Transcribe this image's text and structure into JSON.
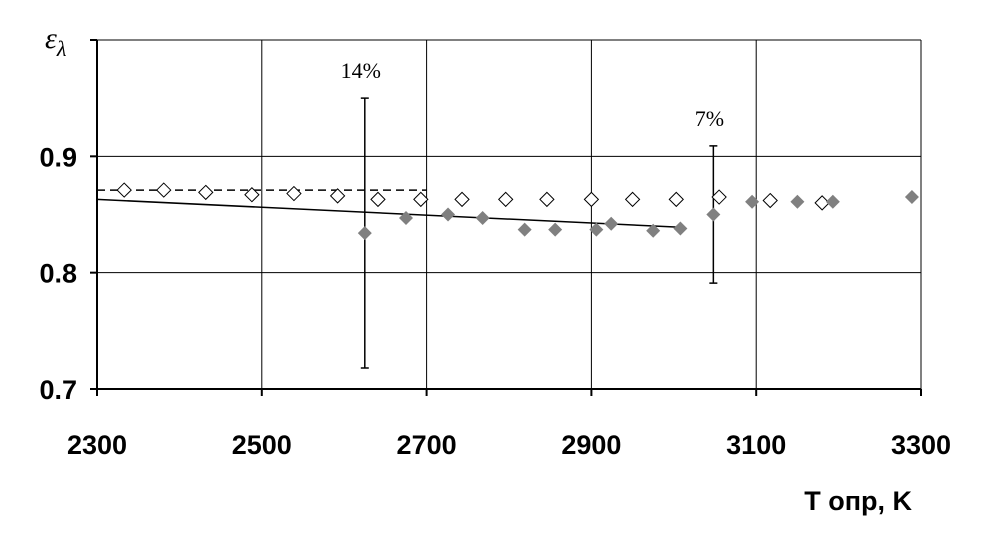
{
  "chart_data": {
    "type": "scatter",
    "y_label": {
      "symbol": "ε",
      "subscript": "λ"
    },
    "x_label": "T опр, K",
    "xlim": [
      2300,
      3300
    ],
    "xticks": [
      2300,
      2500,
      2700,
      2900,
      3100,
      3300
    ],
    "ylim": [
      0.7,
      1.0
    ],
    "yticks": [
      0.7,
      0.8,
      0.9
    ],
    "grid": true,
    "series": [
      {
        "marker": "open",
        "color": "#000000",
        "x": [
          2333,
          2381,
          2432,
          2488,
          2539,
          2592,
          2641,
          2693,
          2743,
          2796,
          2846,
          2900,
          2950,
          3003,
          3055,
          3117,
          3180
        ],
        "values": [
          0.871,
          0.871,
          0.869,
          0.867,
          0.868,
          0.866,
          0.863,
          0.863,
          0.863,
          0.863,
          0.863,
          0.863,
          0.863,
          0.863,
          0.865,
          0.862,
          0.86
        ]
      },
      {
        "marker": "filled",
        "color": "#808080",
        "x": [
          2625,
          2675,
          2726,
          2768,
          2819,
          2856,
          2906,
          2924,
          2975,
          3008,
          3048,
          3095,
          3150,
          3193,
          3289
        ],
        "values": [
          0.834,
          0.847,
          0.85,
          0.847,
          0.837,
          0.837,
          0.837,
          0.842,
          0.836,
          0.838,
          0.85,
          0.861,
          0.861,
          0.861,
          0.865
        ],
        "errors": [
          0.116,
          null,
          null,
          null,
          null,
          null,
          null,
          null,
          null,
          null,
          0.059,
          null,
          null,
          null,
          null
        ]
      }
    ],
    "lines": [
      {
        "style": "solid",
        "x": [
          2300,
          3008
        ],
        "values": [
          0.863,
          0.839
        ]
      },
      {
        "style": "dashed",
        "x": [
          2300,
          2700
        ],
        "values": [
          0.871,
          0.871
        ]
      }
    ],
    "annotations": [
      "14%",
      "7%"
    ]
  }
}
